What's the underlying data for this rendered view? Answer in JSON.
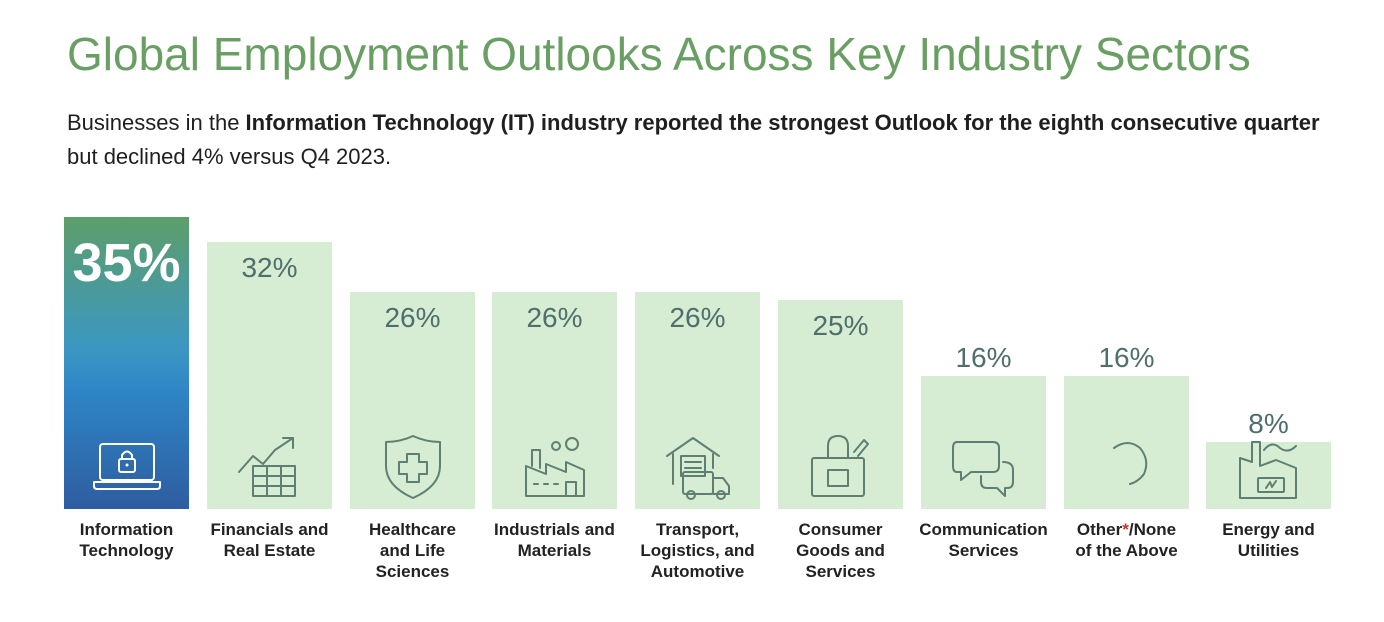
{
  "header": {
    "title": "Global Employment Outlooks Across Key Industry Sectors",
    "subtitle_pre": "Businesses in the ",
    "subtitle_bold1": "Information Technology (IT) industry reported the strongest Outlook for the eighth consecutive quarter",
    "subtitle_post": " but declined 4% versus Q4 2023."
  },
  "colors": {
    "bar": "#d6edd3",
    "value_text": "#4f6e6c",
    "title": "#6a9f64",
    "icon_stroke": "#5f7f72"
  },
  "chart_data": {
    "type": "bar",
    "title": "Global Employment Outlooks Across Key Industry Sectors",
    "xlabel": "",
    "ylabel": "",
    "ylim": [
      0,
      40
    ],
    "categories": [
      "Information Technology",
      "Financials and Real Estate",
      "Healthcare and Life Sciences",
      "Industrials and Materials",
      "Transport, Logistics, and Automotive",
      "Consumer Goods and Services",
      "Communication Services",
      "Other*/None of the Above",
      "Energy and Utilities"
    ],
    "values": [
      35,
      32,
      26,
      26,
      26,
      25,
      16,
      16,
      8
    ],
    "value_labels": [
      "35%",
      "32%",
      "26%",
      "26%",
      "26%",
      "25%",
      "16%",
      "16%",
      "8%"
    ],
    "label_lines": [
      [
        "Information",
        "Technology"
      ],
      [
        "Financials and",
        "Real Estate"
      ],
      [
        "Healthcare",
        "and Life",
        "Sciences"
      ],
      [
        "Industrials and",
        "Materials"
      ],
      [
        "Transport,",
        "Logistics, and",
        "Automotive"
      ],
      [
        "Consumer",
        "Goods and",
        "Services"
      ],
      [
        "Communication",
        "Services"
      ],
      [
        "Other*/None",
        "of the Above"
      ],
      [
        "Energy and",
        "Utilities"
      ]
    ],
    "icons": [
      "laptop-lock-icon",
      "building-growth-chart-icon",
      "shield-cross-icon",
      "factory-icon",
      "warehouse-truck-icon",
      "shopping-bag-icon",
      "chat-bubbles-icon",
      "loading-arc-icon",
      "power-plant-battery-icon"
    ],
    "highlight_index": 0
  }
}
